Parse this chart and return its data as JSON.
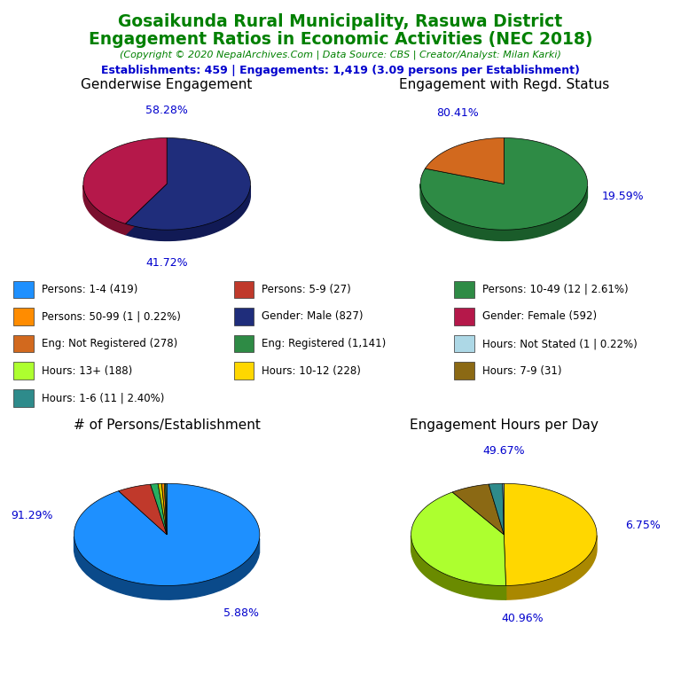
{
  "title_line1": "Gosaikunda Rural Municipality, Rasuwa District",
  "title_line2": "Engagement Ratios in Economic Activities (NEC 2018)",
  "subtitle": "(Copyright © 2020 NepalArchives.Com | Data Source: CBS | Creator/Analyst: Milan Karki)",
  "stats_line": "Establishments: 459 | Engagements: 1,419 (3.09 persons per Establishment)",
  "title_color": "#008000",
  "subtitle_color": "#008000",
  "stats_color": "#0000CD",
  "pie1_title": "Genderwise Engagement",
  "pie1_values": [
    58.28,
    41.72
  ],
  "pie1_colors": [
    "#1F2D7B",
    "#B5184A"
  ],
  "pie1_dark_colors": [
    "#111A55",
    "#7A0F2E"
  ],
  "pie1_pct_labels": [
    "58.28%",
    "41.72%"
  ],
  "pie2_title": "Engagement with Regd. Status",
  "pie2_values": [
    80.41,
    19.59
  ],
  "pie2_colors": [
    "#2E8B45",
    "#D2691E"
  ],
  "pie2_dark_colors": [
    "#1A5C2A",
    "#8B3A0A"
  ],
  "pie2_pct_labels": [
    "80.41%",
    "19.59%"
  ],
  "pie3_title": "# of Persons/Establishment",
  "pie3_values": [
    91.29,
    5.88,
    1.3,
    0.65,
    0.44,
    0.22,
    0.22
  ],
  "pie3_colors": [
    "#1E90FF",
    "#C0392B",
    "#27AE60",
    "#C8C800",
    "#FF8C00",
    "#ADFF2F",
    "#2E8B8B"
  ],
  "pie3_dark_colors": [
    "#0A4A8A",
    "#7B0D0D",
    "#145C30",
    "#888800",
    "#8B4500",
    "#6A8B00",
    "#1A5555"
  ],
  "pie3_pct_labels": [
    "91.29%",
    "5.88%",
    "",
    "",
    "",
    "",
    ""
  ],
  "pie4_title": "Engagement Hours per Day",
  "pie4_values": [
    49.67,
    40.96,
    6.75,
    2.4,
    0.22
  ],
  "pie4_colors": [
    "#FFD700",
    "#ADFF2F",
    "#8B6914",
    "#2E8B8B",
    "#ADD8E6"
  ],
  "pie4_dark_colors": [
    "#AA8800",
    "#6A8B00",
    "#4A3A00",
    "#1A5555",
    "#5A8888"
  ],
  "pie4_pct_labels": [
    "49.67%",
    "40.96%",
    "6.75%",
    "",
    ""
  ],
  "legend_items": [
    {
      "label": "Persons: 1-4 (419)",
      "color": "#1E90FF"
    },
    {
      "label": "Persons: 5-9 (27)",
      "color": "#C0392B"
    },
    {
      "label": "Persons: 10-49 (12 | 2.61%)",
      "color": "#2E8B45"
    },
    {
      "label": "Persons: 50-99 (1 | 0.22%)",
      "color": "#FF8C00"
    },
    {
      "label": "Gender: Male (827)",
      "color": "#1F2D7B"
    },
    {
      "label": "Gender: Female (592)",
      "color": "#B5184A"
    },
    {
      "label": "Eng: Not Registered (278)",
      "color": "#D2691E"
    },
    {
      "label": "Eng: Registered (1,141)",
      "color": "#2E8B45"
    },
    {
      "label": "Hours: Not Stated (1 | 0.22%)",
      "color": "#ADD8E6"
    },
    {
      "label": "Hours: 13+ (188)",
      "color": "#ADFF2F"
    },
    {
      "label": "Hours: 10-12 (228)",
      "color": "#FFD700"
    },
    {
      "label": "Hours: 7-9 (31)",
      "color": "#8B6914"
    },
    {
      "label": "Hours: 1-6 (11 | 2.40%)",
      "color": "#2E8B8B"
    }
  ],
  "bg_color": "#FFFFFF",
  "pie_label_color": "#0000CD",
  "pie_title_fontsize": 11
}
